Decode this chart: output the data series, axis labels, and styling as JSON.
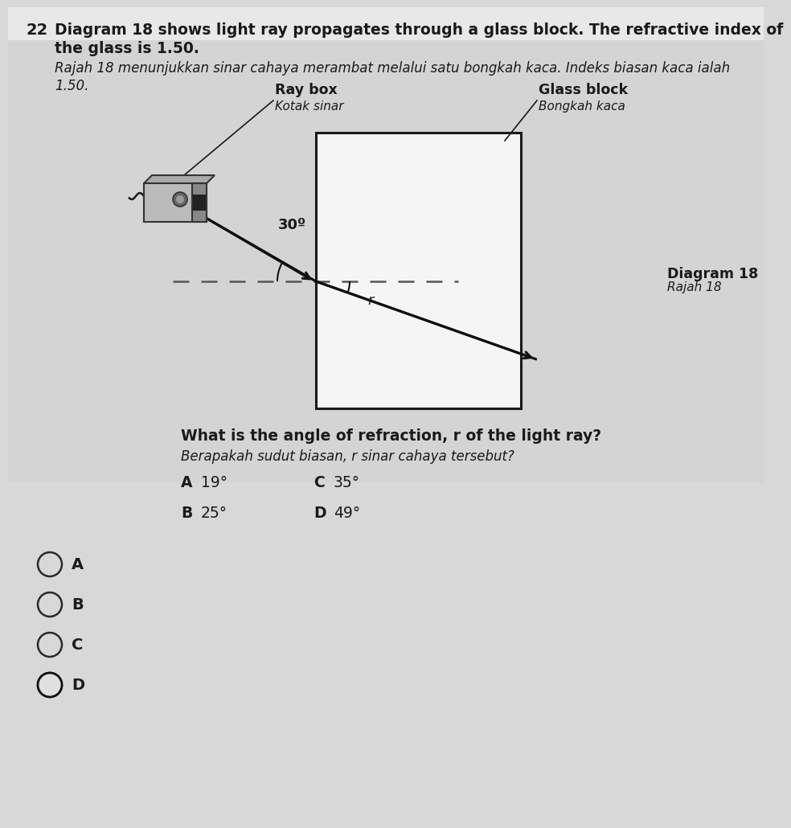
{
  "question_number": "22",
  "title_line1": "Diagram 18 shows light ray propagates through a glass block. The refractive index of",
  "title_line2": "the glass is 1.50.",
  "malay_line1": "Rajah 18 menunjukkan sinar cahaya merambat melalui satu bongkah kaca. Indeks biasan kaca ialah",
  "malay_line2": "1.50.",
  "raybox_label_en": "Ray box",
  "raybox_label_my": "Kotak sinar",
  "glassblock_label_en": "Glass block",
  "glassblock_label_my": "Bongkah kaca",
  "diagram_label_en": "Diagram 18",
  "diagram_label_my": "Rajah 18",
  "angle_incident_label": "30º",
  "angle_refraction_label": "r",
  "question_en": "What is the angle of refraction, r of the light ray?",
  "question_my": "Berapakah sudut biasan, r sinar cahaya tersebut?",
  "option_A_letter": "A",
  "option_A_val": "19°",
  "option_B_letter": "B",
  "option_B_val": "25°",
  "option_C_letter": "C",
  "option_C_val": "35°",
  "option_D_letter": "D",
  "option_D_val": "49°",
  "bg_color": "#d8d8d8",
  "text_color": "#1a1a1a",
  "ray_color": "#111111",
  "dashed_color": "#555555",
  "glass_edge": "#1a1a1a",
  "glass_fill": "#f5f5f5",
  "raybox_body": "#cccccc",
  "raybox_front": "#888888",
  "raybox_dark": "#555555"
}
